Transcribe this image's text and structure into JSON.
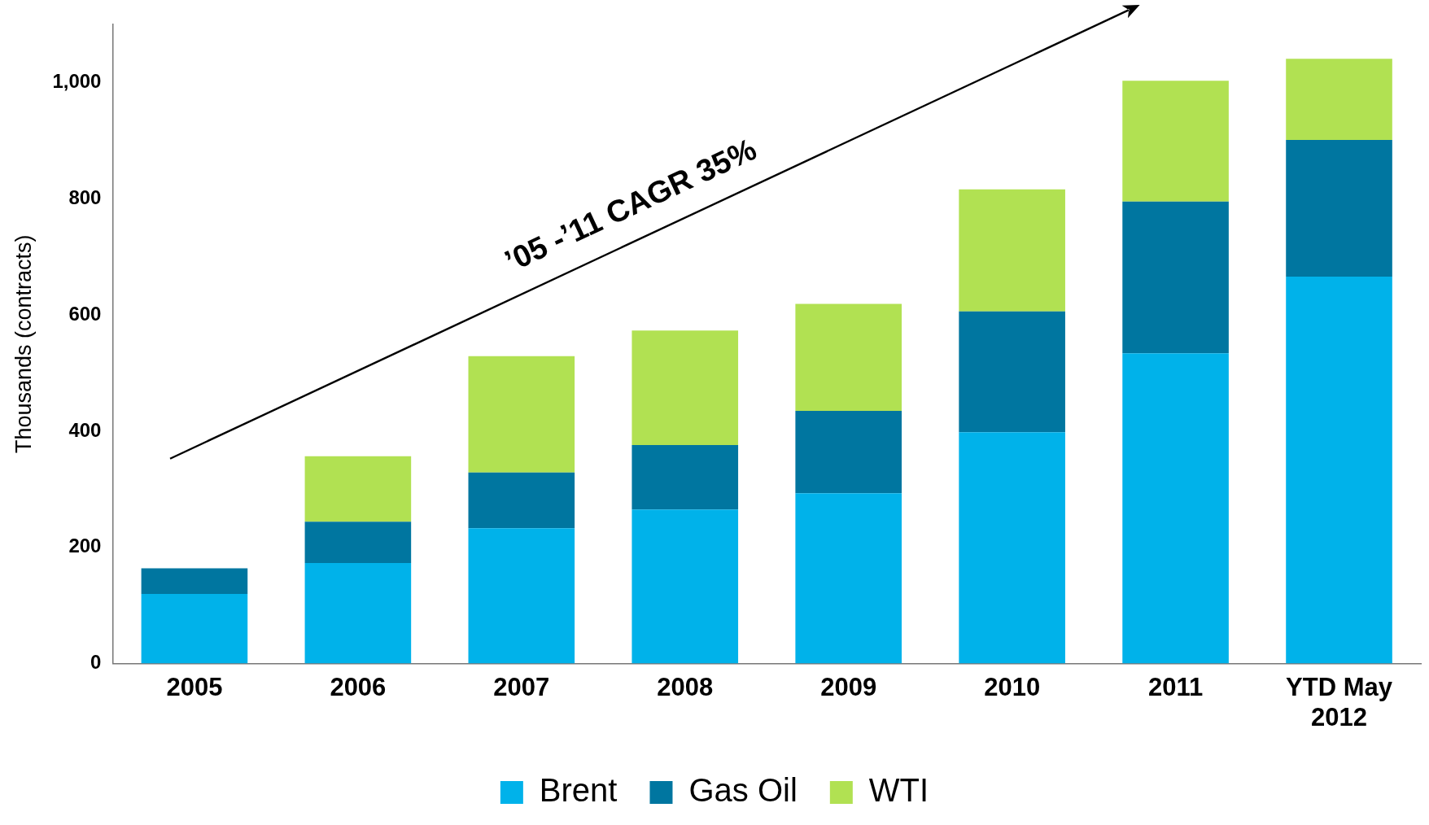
{
  "chart_data": {
    "type": "bar",
    "stacked": true,
    "ylabel": "Thousands (contracts)",
    "categories": [
      "2005",
      "2006",
      "2007",
      "2008",
      "2009",
      "2010",
      "2011",
      "YTD May\n2012"
    ],
    "series": [
      {
        "name": "Brent",
        "color": "#00b2ea",
        "values": [
          120,
          173,
          233,
          265,
          293,
          398,
          534,
          666
        ]
      },
      {
        "name": "Gas Oil",
        "color": "#0076a0",
        "values": [
          44,
          71,
          96,
          111,
          142,
          208,
          261,
          235
        ]
      },
      {
        "name": "WTI",
        "color": "#b1e152",
        "values": [
          0,
          113,
          200,
          197,
          184,
          210,
          208,
          140
        ]
      }
    ],
    "ylim": [
      0,
      1100
    ],
    "yticks": [
      0,
      200,
      400,
      600,
      800,
      {
        "value": 1000,
        "label": "1,000"
      }
    ],
    "grid": false,
    "legend": "bottom",
    "annotations": [
      "’05 -’11 CAGR 35%"
    ]
  }
}
